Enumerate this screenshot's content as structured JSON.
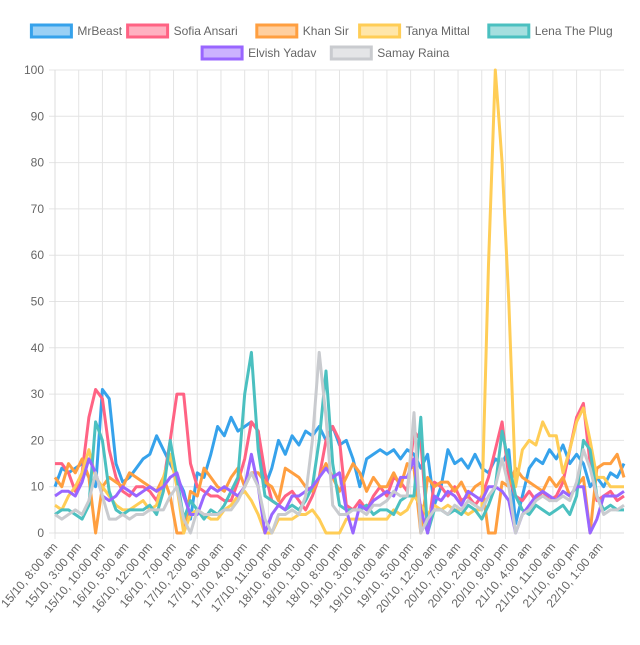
{
  "chart_data": {
    "type": "line",
    "title": "",
    "xlabel": "",
    "ylabel": "",
    "ylim": [
      0,
      100
    ],
    "yticks": [
      0,
      10,
      20,
      30,
      40,
      50,
      60,
      70,
      80,
      90,
      100
    ],
    "grid": true,
    "legend_position": "top",
    "x_tick_labels": [
      "15/10, 8:00 am",
      "15/10, 3:00 pm",
      "15/10, 10:00 pm",
      "16/10, 5:00 am",
      "16/10, 12:00 pm",
      "16/10, 7:00 pm",
      "17/10, 2:00 am",
      "17/10, 9:00 am",
      "17/10, 4:00 pm",
      "17/10, 11:00 pm",
      "18/10, 6:00 am",
      "18/10, 1:00 pm",
      "18/10, 8:00 pm",
      "19/10, 3:00 am",
      "19/10, 10:00 am",
      "19/10, 5:00 pm",
      "20/10, 12:00 am",
      "20/10, 7:00 am",
      "20/10, 2:00 pm",
      "20/10, 9:00 pm",
      "21/10, 4:00 am",
      "21/10, 11:00 am",
      "21/10, 6:00 pm",
      "22/10, 1:00 am"
    ],
    "series": [
      {
        "name": "MrBeast",
        "color": "#36a2eb",
        "values": [
          10,
          14,
          13,
          14,
          15,
          12,
          10,
          31,
          29,
          15,
          11,
          12,
          14,
          16,
          17,
          21,
          18,
          15,
          12,
          9,
          3,
          13,
          12,
          17,
          23,
          21,
          25,
          22,
          23,
          24,
          22,
          10,
          14,
          20,
          17,
          21,
          19,
          22,
          21,
          23,
          20,
          23,
          19,
          20,
          16,
          10,
          16,
          17,
          18,
          17,
          18,
          16,
          18,
          17,
          14,
          17,
          6,
          10,
          18,
          15,
          16,
          14,
          17,
          14,
          13,
          16,
          15,
          18,
          2,
          8,
          14,
          16,
          15,
          18,
          16,
          19,
          15,
          17,
          15,
          10,
          12,
          10,
          13,
          12,
          15
        ]
      },
      {
        "name": "Sofia Ansari",
        "color": "#ff6384",
        "values": [
          15,
          15,
          13,
          9,
          13,
          25,
          31,
          29,
          18,
          12,
          9,
          8,
          10,
          10,
          9,
          7,
          11,
          20,
          30,
          30,
          15,
          10,
          9,
          8,
          8,
          7,
          7,
          11,
          16,
          24,
          22,
          13,
          7,
          6,
          8,
          9,
          7,
          5,
          8,
          12,
          20,
          23,
          20,
          6,
          5,
          7,
          5,
          8,
          10,
          8,
          12,
          11,
          9,
          22,
          20,
          0,
          11,
          10,
          8,
          10,
          7,
          8,
          6,
          8,
          12,
          18,
          24,
          12,
          8,
          7,
          9,
          7,
          9,
          7,
          8,
          11,
          18,
          25,
          28,
          15,
          7,
          8,
          9,
          7,
          8
        ]
      },
      {
        "name": "Khan Sir",
        "color": "#ff9f40",
        "values": [
          12,
          10,
          15,
          13,
          16,
          12,
          0,
          10,
          12,
          11,
          10,
          13,
          12,
          11,
          10,
          9,
          12,
          8,
          0,
          0,
          9,
          8,
          14,
          12,
          10,
          9,
          12,
          14,
          10,
          13,
          13,
          11,
          10,
          7,
          14,
          13,
          12,
          10,
          9,
          12,
          15,
          12,
          9,
          12,
          15,
          13,
          9,
          12,
          10,
          10,
          13,
          10,
          15,
          14,
          0,
          12,
          10,
          11,
          11,
          9,
          11,
          8,
          10,
          11,
          0,
          0,
          11,
          10,
          14,
          12,
          11,
          10,
          9,
          12,
          10,
          12,
          8,
          10,
          12,
          0,
          14,
          15,
          15,
          17,
          12
        ]
      },
      {
        "name": "Tanya Mittal",
        "color": "#ffcd56",
        "values": [
          6,
          5,
          8,
          10,
          13,
          18,
          12,
          10,
          8,
          6,
          5,
          5,
          6,
          7,
          5,
          6,
          12,
          17,
          10,
          0,
          4,
          5,
          4,
          3,
          3,
          5,
          6,
          8,
          9,
          7,
          4,
          0,
          0,
          3,
          3,
          3,
          4,
          4,
          5,
          3,
          0,
          0,
          0,
          3,
          3,
          3,
          3,
          3,
          3,
          3,
          5,
          4,
          5,
          8,
          6,
          4,
          6,
          5,
          6,
          5,
          5,
          4,
          5,
          5,
          58,
          100,
          80,
          50,
          10,
          18,
          20,
          19,
          24,
          21,
          21,
          13,
          18,
          24,
          27,
          20,
          12,
          12,
          10,
          10,
          10
        ]
      },
      {
        "name": "Lena The Plug",
        "color": "#4bc0c0",
        "values": [
          4,
          5,
          5,
          4,
          3,
          6,
          24,
          20,
          9,
          5,
          4,
          5,
          5,
          5,
          6,
          4,
          9,
          20,
          12,
          3,
          7,
          5,
          3,
          5,
          4,
          6,
          9,
          12,
          30,
          39,
          18,
          8,
          7,
          6,
          5,
          6,
          5,
          7,
          10,
          20,
          35,
          15,
          6,
          5,
          5,
          5,
          6,
          4,
          5,
          5,
          4,
          7,
          8,
          8,
          25,
          0,
          5,
          5,
          4,
          5,
          4,
          6,
          5,
          3,
          6,
          10,
          22,
          15,
          8,
          5,
          4,
          6,
          5,
          4,
          5,
          6,
          4,
          8,
          20,
          18,
          8,
          5,
          6,
          5,
          5
        ]
      },
      {
        "name": "Elvish Yadav",
        "color": "#9966ff",
        "values": [
          8,
          9,
          9,
          8,
          11,
          16,
          13,
          8,
          7,
          8,
          10,
          9,
          8,
          9,
          10,
          9,
          10,
          12,
          13,
          8,
          4,
          4,
          8,
          10,
          9,
          10,
          9,
          8,
          10,
          17,
          10,
          0,
          4,
          6,
          5,
          8,
          8,
          9,
          10,
          12,
          14,
          12,
          13,
          5,
          0,
          6,
          5,
          7,
          8,
          9,
          8,
          12,
          12,
          16,
          5,
          0,
          8,
          7,
          9,
          8,
          6,
          9,
          8,
          7,
          10,
          10,
          9,
          7,
          0,
          4,
          6,
          8,
          9,
          8,
          7,
          9,
          8,
          10,
          10,
          0,
          3,
          8,
          8,
          8,
          9
        ]
      },
      {
        "name": "Samay Raina",
        "color": "#c9cbcf",
        "values": [
          4,
          3,
          4,
          5,
          4,
          7,
          13,
          8,
          3,
          3,
          4,
          3,
          4,
          4,
          5,
          5,
          5,
          8,
          10,
          3,
          0,
          5,
          4,
          4,
          4,
          5,
          5,
          7,
          10,
          13,
          10,
          3,
          0,
          4,
          4,
          5,
          4,
          8,
          20,
          39,
          25,
          6,
          4,
          4,
          5,
          5,
          4,
          6,
          6,
          7,
          9,
          8,
          8,
          26,
          0,
          3,
          5,
          5,
          4,
          6,
          5,
          7,
          6,
          5,
          8,
          10,
          16,
          10,
          0,
          4,
          5,
          7,
          8,
          7,
          7,
          8,
          7,
          11,
          18,
          14,
          8,
          4,
          5,
          5,
          6
        ]
      }
    ]
  }
}
